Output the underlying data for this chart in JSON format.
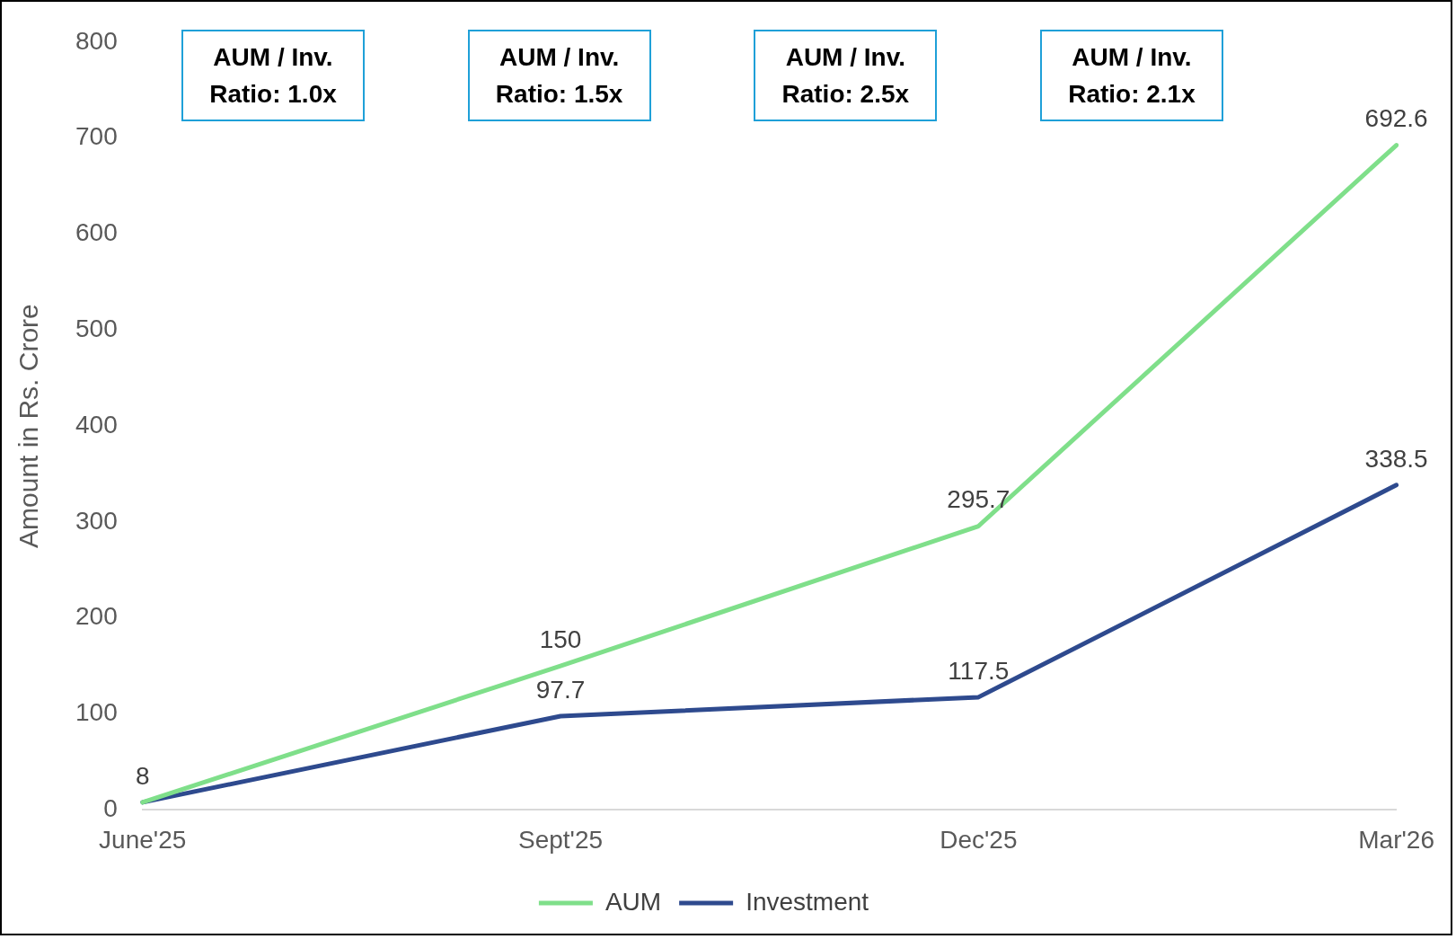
{
  "chart_data": {
    "type": "line",
    "ylabel": "Amount in Rs. Crore",
    "categories": [
      "June'25",
      "Sept'25",
      "Dec'25",
      "Mar'26"
    ],
    "series": [
      {
        "name": "AUM",
        "color": "#7fdf8a",
        "values": [
          8,
          150,
          295.7,
          692.6
        ],
        "value_labels": [
          "8",
          "150",
          "295.7",
          "692.6"
        ]
      },
      {
        "name": "Investment",
        "color": "#2e4a8e",
        "values": [
          8,
          97.7,
          117.5,
          338.5
        ],
        "value_labels": [
          null,
          "97.7",
          "117.5",
          "338.5"
        ]
      }
    ],
    "ylim": [
      0,
      800
    ],
    "yticks": [
      0,
      100,
      200,
      300,
      400,
      500,
      600,
      700,
      800
    ],
    "grid": false,
    "legend": "bottom",
    "marker": "none",
    "line_style": "solid",
    "annotations": [
      "AUM / Inv. Ratio: 1.0x",
      "AUM / Inv. Ratio: 1.5x",
      "AUM / Inv. Ratio: 2.5x",
      "AUM / Inv. Ratio: 2.1x"
    ]
  }
}
